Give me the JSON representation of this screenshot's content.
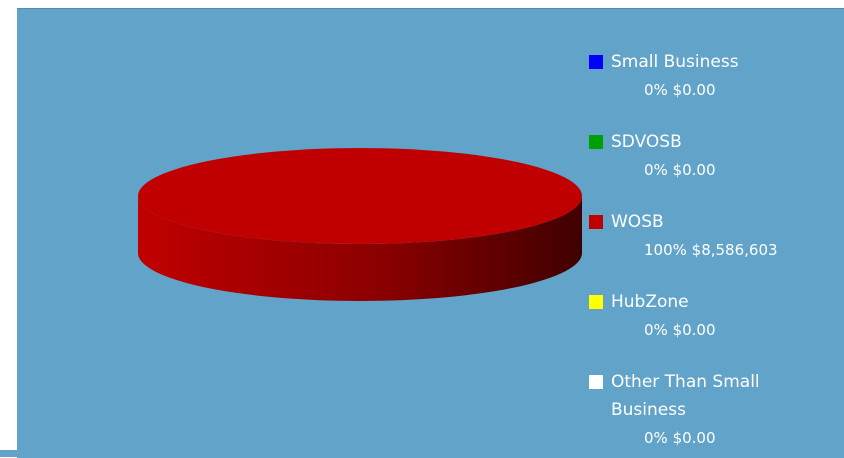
{
  "chart_data": {
    "type": "pie",
    "categories": [
      "Small Business",
      "SDVOSB",
      "WOSB",
      "HubZone",
      "Other Than Small Business"
    ],
    "values": [
      0,
      0,
      100,
      0,
      0
    ],
    "value_labels": [
      "0% $0.00",
      "0% $0.00",
      "100% $8,586,603",
      "0% $0.00",
      "0% $0.00"
    ],
    "colors": [
      "#0000ff",
      "#00a000",
      "#c00000",
      "#ffff00",
      "#ffffff"
    ],
    "legend": "right"
  }
}
